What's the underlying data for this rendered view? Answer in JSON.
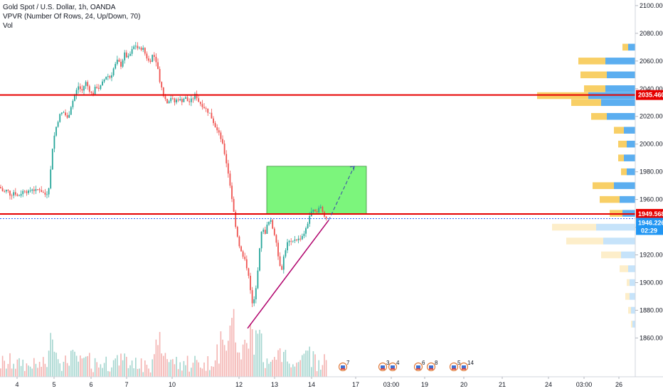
{
  "legend": {
    "title": "Gold Spot / U.S. Dollar, 1h, OANDA",
    "indicator": "VPVR (Number Of Rows, 24, Up/Down, 70)",
    "volume": "Vol"
  },
  "colors": {
    "up": "#26a69a",
    "down": "#ef5350",
    "hline": "#e60000",
    "dotted": "#2962ff",
    "trend": "#b0006b",
    "box_fill": "#7cf57c",
    "vpvr_up": "#5baef0",
    "vpvr_down": "#f8cf66",
    "last_price_tag": "#2196f3"
  },
  "chart_data": {
    "type": "candlestick",
    "y_axis": {
      "ylim": [
        1852,
        2102
      ],
      "ticks": [
        2100,
        2080,
        2060,
        2040,
        2020,
        2000,
        1980,
        1960,
        1940,
        1920,
        1900,
        1880,
        1860
      ],
      "tick_labels": [
        "2100.000",
        "2080.000",
        "2060.000",
        "2040.000",
        "2020.000",
        "2000.000",
        "1980.000",
        "1960.000",
        "1940.000",
        "1920.000",
        "1900.000",
        "1880.000",
        "1860.000"
      ]
    },
    "x_axis": {
      "labels": [
        "4",
        "5",
        "6",
        "7",
        "10",
        "12",
        "13",
        "14",
        "17",
        "03:00",
        "19",
        "20",
        "21",
        "24",
        "03:00",
        "26"
      ]
    },
    "path": [
      [
        0,
        1969
      ],
      [
        5,
        1965
      ],
      [
        10,
        1967
      ],
      [
        15,
        1963
      ],
      [
        20,
        1966
      ],
      [
        25,
        1962
      ],
      [
        30,
        1965
      ],
      [
        35,
        1967
      ],
      [
        40,
        1965
      ],
      [
        45,
        1968
      ],
      [
        50,
        1966
      ],
      [
        55,
        1968
      ],
      [
        60,
        1965
      ],
      [
        65,
        1963
      ],
      [
        70,
        1972
      ],
      [
        73,
        1995
      ],
      [
        76,
        2005
      ],
      [
        80,
        2015
      ],
      [
        85,
        2022
      ],
      [
        90,
        2023
      ],
      [
        95,
        2018
      ],
      [
        100,
        2028
      ],
      [
        105,
        2035
      ],
      [
        110,
        2042
      ],
      [
        115,
        2038
      ],
      [
        120,
        2045
      ],
      [
        125,
        2040
      ],
      [
        130,
        2035
      ],
      [
        135,
        2042
      ],
      [
        140,
        2040
      ],
      [
        145,
        2045
      ],
      [
        150,
        2050
      ],
      [
        155,
        2048
      ],
      [
        160,
        2055
      ],
      [
        165,
        2060
      ],
      [
        170,
        2057
      ],
      [
        175,
        2065
      ],
      [
        180,
        2062
      ],
      [
        185,
        2067
      ],
      [
        190,
        2072
      ],
      [
        195,
        2068
      ],
      [
        200,
        2070
      ],
      [
        205,
        2064
      ],
      [
        210,
        2059
      ],
      [
        215,
        2065
      ],
      [
        220,
        2060
      ],
      [
        225,
        2045
      ],
      [
        230,
        2035
      ],
      [
        235,
        2030
      ],
      [
        240,
        2034
      ],
      [
        245,
        2030
      ],
      [
        250,
        2033
      ],
      [
        255,
        2031
      ],
      [
        260,
        2034
      ],
      [
        265,
        2030
      ],
      [
        270,
        2032
      ],
      [
        275,
        2036
      ],
      [
        280,
        2030
      ],
      [
        285,
        2028
      ],
      [
        290,
        2025
      ],
      [
        295,
        2022
      ],
      [
        300,
        2016
      ],
      [
        305,
        2010
      ],
      [
        310,
        2005
      ],
      [
        315,
        1995
      ],
      [
        320,
        1982
      ],
      [
        325,
        1965
      ],
      [
        330,
        1945
      ],
      [
        335,
        1930
      ],
      [
        340,
        1920
      ],
      [
        345,
        1915
      ],
      [
        350,
        1905
      ],
      [
        353,
        1888
      ],
      [
        356,
        1882
      ],
      [
        360,
        1898
      ],
      [
        364,
        1918
      ],
      [
        368,
        1940
      ],
      [
        372,
        1935
      ],
      [
        376,
        1942
      ],
      [
        380,
        1945
      ],
      [
        384,
        1938
      ],
      [
        388,
        1932
      ],
      [
        392,
        1915
      ],
      [
        396,
        1910
      ],
      [
        400,
        1922
      ],
      [
        405,
        1930
      ],
      [
        410,
        1928
      ],
      [
        415,
        1932
      ],
      [
        420,
        1931
      ],
      [
        425,
        1934
      ],
      [
        430,
        1938
      ],
      [
        435,
        1948
      ],
      [
        440,
        1952
      ],
      [
        445,
        1950
      ],
      [
        450,
        1955
      ],
      [
        455,
        1950
      ],
      [
        460,
        1945
      ]
    ],
    "volume_scale": 100,
    "horizontal_lines": [
      {
        "price": 2035.46,
        "label": "2035.460"
      },
      {
        "price": 1949.568,
        "label": "1949.568"
      }
    ],
    "last_price": {
      "price": 1946.226,
      "label": "1946.226",
      "countdown": "02:29"
    },
    "projection_box": {
      "x1": 375,
      "x2": 515,
      "price_top": 1984,
      "price_bottom": 1949.5
    },
    "trendline": {
      "x1": 348,
      "price1": 1867,
      "x2": 462,
      "price2": 1945
    },
    "projection_line": {
      "x1": 462,
      "price1": 1945,
      "x2": 498,
      "price2": 1984
    },
    "vpvr": [
      {
        "price": 2070,
        "up": 10,
        "down": 8
      },
      {
        "price": 2060,
        "up": 42,
        "down": 38
      },
      {
        "price": 2050,
        "up": 40,
        "down": 37
      },
      {
        "price": 2040,
        "up": 42,
        "down": 30
      },
      {
        "price": 2035,
        "up": 66,
        "down": 72
      },
      {
        "price": 2030,
        "up": 48,
        "down": 42
      },
      {
        "price": 2020,
        "up": 40,
        "down": 22
      },
      {
        "price": 2010,
        "up": 16,
        "down": 14
      },
      {
        "price": 2000,
        "up": 12,
        "down": 12
      },
      {
        "price": 1990,
        "up": 16,
        "down": 8
      },
      {
        "price": 1980,
        "up": 12,
        "down": 8
      },
      {
        "price": 1970,
        "up": 30,
        "down": 30
      },
      {
        "price": 1960,
        "up": 22,
        "down": 28
      },
      {
        "price": 1950,
        "up": 18,
        "down": 18
      },
      {
        "price": 1940,
        "up": 55,
        "down": 62
      },
      {
        "price": 1930,
        "up": 45,
        "down": 52
      },
      {
        "price": 1920,
        "up": 20,
        "down": 28
      },
      {
        "price": 1910,
        "up": 10,
        "down": 12
      },
      {
        "price": 1900,
        "up": 8,
        "down": 4
      },
      {
        "price": 1890,
        "up": 8,
        "down": 6
      },
      {
        "price": 1880,
        "up": 6,
        "down": 4
      },
      {
        "price": 1870,
        "up": 4,
        "down": 2
      }
    ],
    "events": [
      {
        "x": 482,
        "label": "7"
      },
      {
        "x": 538,
        "label": "3"
      },
      {
        "x": 552,
        "label": "4"
      },
      {
        "x": 588,
        "label": "6"
      },
      {
        "x": 606,
        "label": "8"
      },
      {
        "x": 638,
        "label": "5"
      },
      {
        "x": 652,
        "label": "14"
      }
    ]
  }
}
